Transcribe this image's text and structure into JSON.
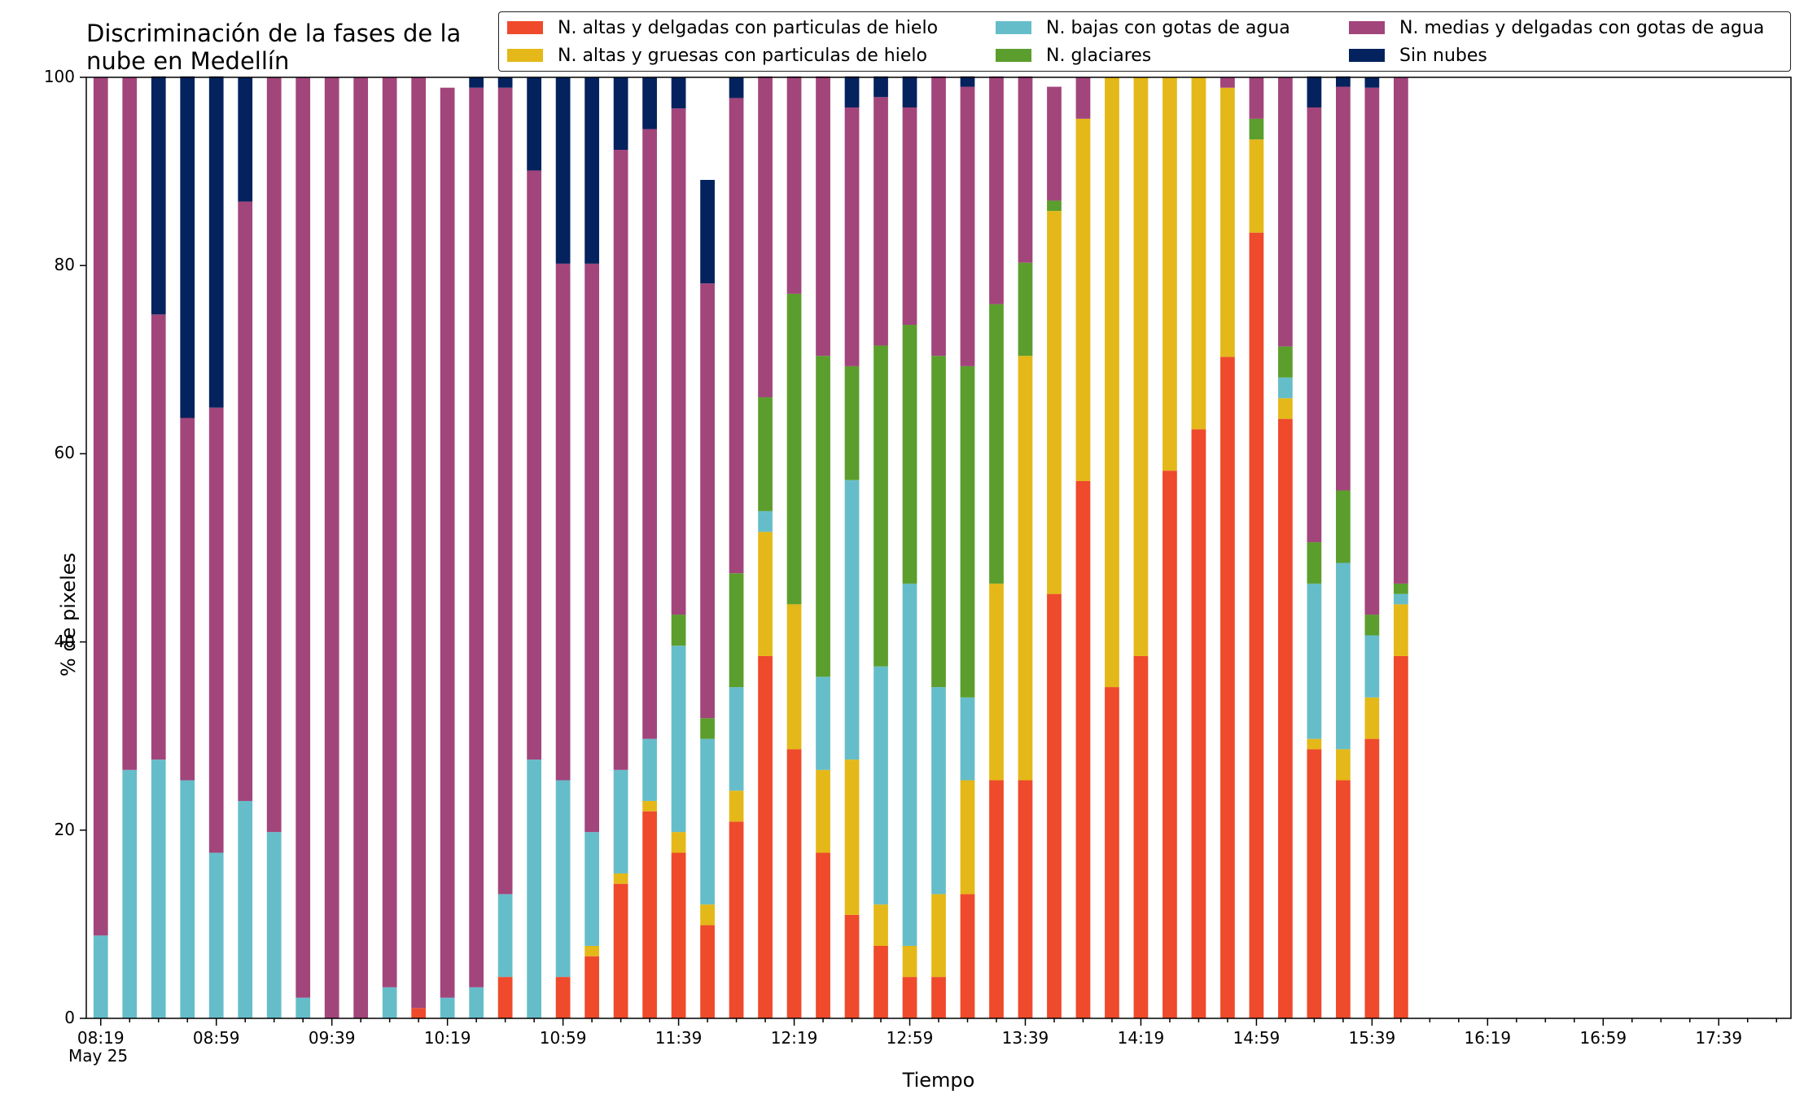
{
  "chart_data": {
    "type": "bar",
    "stacked": true,
    "title": "Discriminación de la fases de la\nnube en Medellín",
    "xlabel": "Tiempo",
    "ylabel": "% de pixeles",
    "ylim": [
      0,
      100
    ],
    "yticks": [
      0,
      20,
      40,
      60,
      80,
      100
    ],
    "xticklabels": [
      "08:19",
      "08:59",
      "09:39",
      "10:19",
      "10:59",
      "11:39",
      "12:19",
      "12:59",
      "13:39",
      "14:19",
      "14:59",
      "15:39",
      "16:19",
      "16:59",
      "17:39"
    ],
    "xdate_label": "May 25",
    "legend_position": "top-right",
    "grid": false,
    "total_slots": 59,
    "categories": [
      "08:19",
      "08:29",
      "08:39",
      "08:49",
      "08:59",
      "09:09",
      "09:19",
      "09:29",
      "09:39",
      "09:49",
      "09:59",
      "10:09",
      "10:19",
      "10:29",
      "10:39",
      "10:49",
      "10:59",
      "11:09",
      "11:19",
      "11:29",
      "11:39",
      "11:49",
      "11:59",
      "12:09",
      "12:19",
      "12:29",
      "12:39",
      "12:49",
      "12:59",
      "13:09",
      "13:19",
      "13:29",
      "13:39",
      "13:49",
      "13:59",
      "14:09",
      "14:19",
      "14:29",
      "14:39",
      "14:49",
      "14:59",
      "15:09",
      "15:19",
      "15:29",
      "15:39",
      "15:49"
    ],
    "series": [
      {
        "name": "N. altas y delgadas con particulas de hielo",
        "color": "#ee4a2b",
        "values": [
          0,
          0,
          0,
          0,
          0,
          0,
          0,
          0,
          0,
          0,
          0,
          1.1,
          0,
          0,
          4.4,
          0,
          4.4,
          6.6,
          14.3,
          22,
          17.6,
          9.9,
          20.9,
          38.5,
          28.6,
          17.6,
          11,
          7.7,
          4.4,
          4.4,
          13.2,
          25.3,
          25.3,
          45.1,
          57.1,
          35.2,
          38.5,
          58.2,
          62.6,
          70.3,
          83.5,
          63.7,
          28.6,
          25.3,
          29.7,
          38.5
        ]
      },
      {
        "name": "N. altas y gruesas con particulas de hielo",
        "color": "#e4b818",
        "values": [
          0,
          0,
          0,
          0,
          0,
          0,
          0,
          0,
          0,
          0,
          0,
          0,
          0,
          0,
          0,
          0,
          0,
          1.1,
          1.1,
          1.1,
          2.2,
          2.2,
          3.3,
          13.2,
          15.4,
          8.8,
          16.5,
          4.4,
          3.3,
          8.8,
          12.1,
          20.9,
          45.1,
          40.7,
          38.5,
          64.8,
          61.5,
          41.8,
          37.4,
          28.6,
          9.9,
          2.2,
          1.1,
          3.3,
          4.4,
          5.5
        ]
      },
      {
        "name": "N. bajas con gotas de agua",
        "color": "#66bdca",
        "values": [
          8.8,
          26.4,
          27.5,
          25.3,
          17.6,
          23.1,
          19.8,
          2.2,
          0,
          0,
          3.3,
          0,
          2.2,
          3.3,
          8.8,
          27.5,
          20.9,
          12.1,
          11,
          6.6,
          19.8,
          17.6,
          11,
          2.2,
          0,
          9.9,
          29.7,
          25.3,
          38.5,
          22,
          8.8,
          0,
          0,
          0,
          0,
          0,
          0,
          0,
          0,
          0,
          0,
          2.2,
          16.5,
          19.8,
          6.6,
          1.1
        ]
      },
      {
        "name": "N. glaciares",
        "color": "#5b9e2d",
        "values": [
          0,
          0,
          0,
          0,
          0,
          0,
          0,
          0,
          0,
          0,
          0,
          0,
          0,
          0,
          0,
          0,
          0,
          0,
          0,
          0,
          3.3,
          2.2,
          12.1,
          12.1,
          33,
          34.1,
          12.1,
          34.1,
          27.5,
          35.2,
          35.2,
          29.7,
          9.9,
          1.1,
          0,
          0,
          0,
          0,
          0,
          0,
          2.2,
          3.3,
          4.4,
          7.7,
          2.2,
          1.1
        ]
      },
      {
        "name": "N. medias y delgadas con gotas de agua",
        "color": "#a2457b",
        "values": [
          91.2,
          73.6,
          47.3,
          38.5,
          47.3,
          63.7,
          80.2,
          97.8,
          100,
          100,
          96.7,
          98.9,
          96.7,
          95.6,
          85.7,
          62.6,
          54.9,
          60.4,
          65.9,
          64.8,
          53.8,
          46.2,
          50.5,
          34.1,
          23.1,
          29.7,
          27.5,
          26.4,
          23.1,
          29.7,
          29.7,
          24.2,
          19.8,
          12.1,
          4.4,
          0,
          0,
          0,
          0,
          1.1,
          4.4,
          28.6,
          46.2,
          42.9,
          56,
          53.8
        ]
      },
      {
        "name": "Sin nubes",
        "color": "#04225e",
        "values": [
          0,
          0,
          25.3,
          36.3,
          35.2,
          13.2,
          0,
          0,
          0,
          0,
          0,
          0,
          0,
          1.1,
          1.1,
          9.9,
          19.8,
          19.8,
          7.7,
          5.5,
          3.3,
          11,
          2.2,
          0,
          0,
          0,
          3.3,
          2.2,
          3.3,
          0,
          1.1,
          0,
          0,
          0,
          0,
          0,
          0,
          0,
          0,
          0,
          0,
          0,
          3.3,
          1.1,
          1.1,
          0
        ]
      }
    ]
  }
}
